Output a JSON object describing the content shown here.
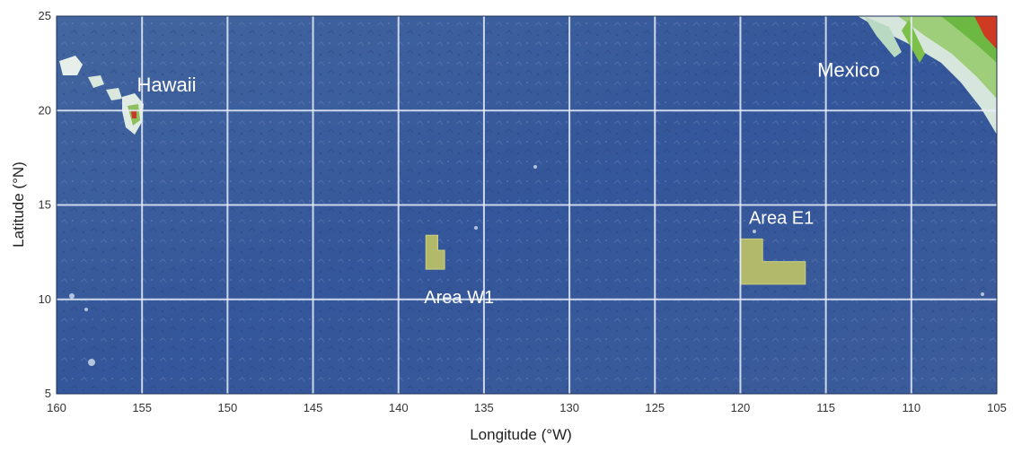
{
  "map": {
    "x_axis_label": "Longitude (°W)",
    "y_axis_label": "Latitude (°N)",
    "lon_range_w": [
      160,
      105
    ],
    "lat_range_n": [
      5,
      25
    ],
    "x_ticks": [
      "160",
      "155",
      "150",
      "145",
      "140",
      "135",
      "130",
      "125",
      "120",
      "115",
      "110",
      "105"
    ],
    "y_ticks": [
      "25",
      "20",
      "15",
      "10",
      "5"
    ],
    "grid": true,
    "colors": {
      "ocean": "#3a5a9c",
      "gridline": "#e8eef8",
      "study_area": "#b3b96a",
      "land_high": "#d23a24",
      "land_mid": "#7cbd3e",
      "land_low": "#cfe3c4",
      "label_text": "#ffffff"
    },
    "place_labels": [
      {
        "text": "Hawaii",
        "lon_w": 155.3,
        "lat_n": 21.0
      },
      {
        "text": "Mexico",
        "lon_w": 115.5,
        "lat_n": 21.8
      }
    ],
    "study_areas": [
      {
        "name": "Area W1",
        "label_lon_w": 138.5,
        "label_lat_n": 9.8
      },
      {
        "name": "Area E1",
        "label_lon_w": 119.5,
        "label_lat_n": 14.0
      }
    ]
  }
}
